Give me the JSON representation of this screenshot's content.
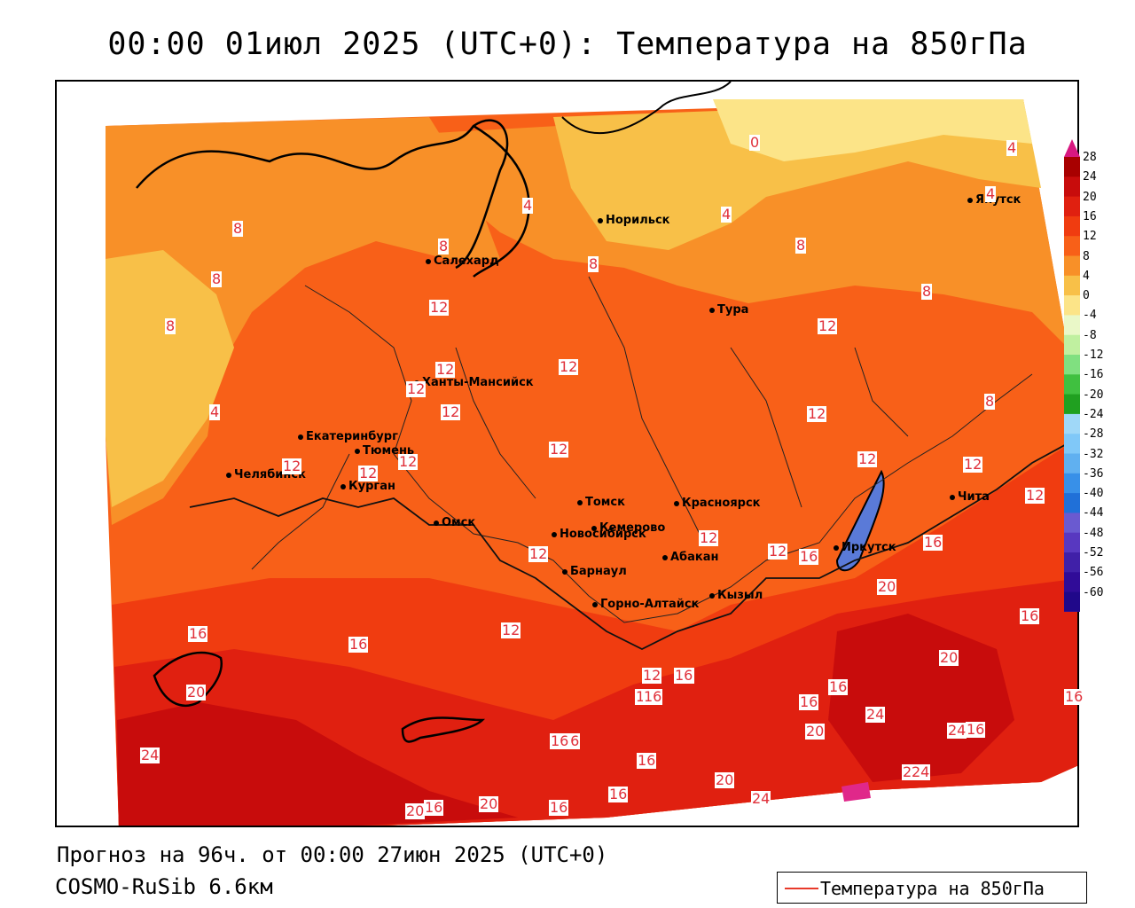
{
  "title": "00:00 01июл 2025 (UTC+0): Температура на 850гПа",
  "footer": {
    "forecast": "Прогноз на 96ч. от 00:00 27июн 2025 (UTC+0)",
    "model": "COSMO-RuSib 6.6км"
  },
  "legend": {
    "label": "Температура на 850гПа",
    "line_color": "#e83a2a"
  },
  "colorbar": {
    "labels": [
      "28",
      "24",
      "20",
      "16",
      "12",
      "8",
      "4",
      "0",
      "-4",
      "-8",
      "-12",
      "-16",
      "-20",
      "-24",
      "-28",
      "-32",
      "-36",
      "-40",
      "-44",
      "-48",
      "-52",
      "-56",
      "-60"
    ],
    "colors": [
      "#a80000",
      "#c80c0c",
      "#e02010",
      "#f03c10",
      "#f86018",
      "#f89028",
      "#f8c048",
      "#fce488",
      "#eaf8c8",
      "#c0f0a0",
      "#80e080",
      "#40c040",
      "#20a020",
      "#a0d8f8",
      "#80c8f8",
      "#60b0f0",
      "#3890e8",
      "#2070d8",
      "#6a5ad0",
      "#5838c0",
      "#4020a8",
      "#300c98",
      "#20088a"
    ]
  },
  "cities": [
    {
      "name": "Норильск"
    },
    {
      "name": "Якутск"
    },
    {
      "name": "Салехард"
    },
    {
      "name": "Тура"
    },
    {
      "name": "Ханты-Мансийск"
    },
    {
      "name": "Екатеринбург"
    },
    {
      "name": "Тюмень"
    },
    {
      "name": "Челябинск"
    },
    {
      "name": "Курган"
    },
    {
      "name": "Томск"
    },
    {
      "name": "Красноярск"
    },
    {
      "name": "Омск"
    },
    {
      "name": "Новосибирск"
    },
    {
      "name": "Кемерово"
    },
    {
      "name": "Барнаул"
    },
    {
      "name": "Абакан"
    },
    {
      "name": "Иркутск"
    },
    {
      "name": "Чита"
    },
    {
      "name": "Горно-Алтайск"
    },
    {
      "name": "Кызыл"
    }
  ],
  "contour_labels": [
    "0",
    "4",
    "4",
    "4",
    "4",
    "8",
    "8",
    "8",
    "8",
    "8",
    "8",
    "8",
    "4",
    "8",
    "12",
    "12",
    "12",
    "12",
    "12",
    "12",
    "12",
    "12",
    "12",
    "12",
    "12",
    "12",
    "12",
    "12",
    "12",
    "12",
    "12",
    "12",
    "16",
    "16",
    "16",
    "16",
    "16",
    "16",
    "16",
    "16",
    "16",
    "16",
    "16",
    "16",
    "16",
    "16",
    "16",
    "20",
    "20",
    "20",
    "20",
    "20",
    "20",
    "20",
    "20",
    "24",
    "24",
    "24",
    "24",
    "24",
    "12",
    "16",
    "16",
    "16",
    "16"
  ]
}
